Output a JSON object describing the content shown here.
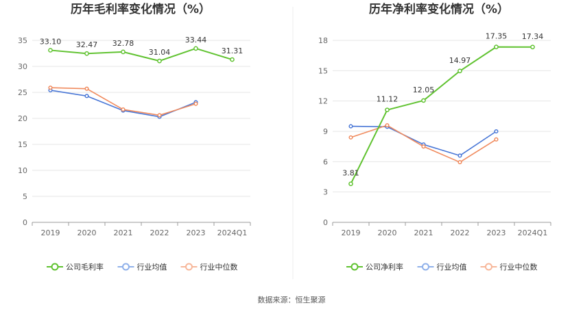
{
  "source_text": "数据来源：恒生聚源",
  "colors": {
    "company": "#5fc22f",
    "industry_avg": "#4876d6",
    "industry_median": "#f08a5d",
    "legend_avg": "#8fb0ea",
    "legend_median": "#f7b79a",
    "grid": "#e6e6e6",
    "axis": "#999999"
  },
  "chart_data": [
    {
      "type": "line",
      "title": "历年毛利率变化情况（%）",
      "categories": [
        "2019",
        "2020",
        "2021",
        "2022",
        "2023",
        "2024Q1"
      ],
      "ylim": [
        0,
        35
      ],
      "yticks": [
        0,
        5,
        10,
        15,
        20,
        25,
        30,
        35
      ],
      "grid": true,
      "legend_position": "bottom",
      "series": [
        {
          "name": "公司毛利率",
          "key": "company",
          "values": [
            33.1,
            32.47,
            32.78,
            31.04,
            33.44,
            31.31
          ],
          "labels": [
            "33.10",
            "32.47",
            "32.78",
            "31.04",
            "33.44",
            "31.31"
          ]
        },
        {
          "name": "行业均值",
          "key": "industry_avg",
          "values": [
            25.4,
            24.3,
            21.5,
            20.3,
            23.1,
            null
          ]
        },
        {
          "name": "行业中位数",
          "key": "industry_median",
          "values": [
            25.9,
            25.7,
            21.7,
            20.6,
            22.8,
            null
          ]
        }
      ]
    },
    {
      "type": "line",
      "title": "历年净利率变化情况（%）",
      "categories": [
        "2019",
        "2020",
        "2021",
        "2022",
        "2023",
        "2024Q1"
      ],
      "ylim": [
        0,
        18
      ],
      "yticks": [
        0,
        3,
        6,
        9,
        12,
        15,
        18
      ],
      "grid": true,
      "legend_position": "bottom",
      "series": [
        {
          "name": "公司净利率",
          "key": "company",
          "values": [
            3.81,
            11.12,
            12.05,
            14.97,
            17.35,
            17.34
          ],
          "labels": [
            "3.81",
            "11.12",
            "12.05",
            "14.97",
            "17.35",
            "17.34"
          ]
        },
        {
          "name": "行业均值",
          "key": "industry_avg",
          "values": [
            9.5,
            9.45,
            7.7,
            6.6,
            9.0,
            null
          ]
        },
        {
          "name": "行业中位数",
          "key": "industry_median",
          "values": [
            8.4,
            9.6,
            7.5,
            5.95,
            8.2,
            null
          ]
        }
      ]
    }
  ]
}
